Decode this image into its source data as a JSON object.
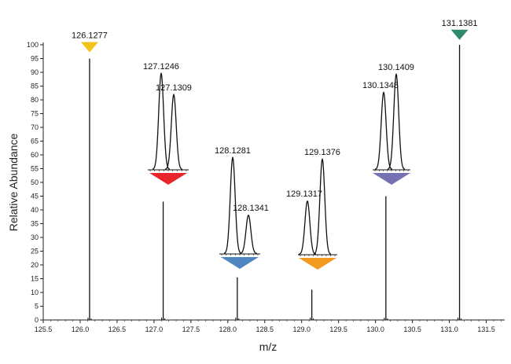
{
  "chart_data": {
    "type": "line",
    "title": "",
    "xlabel": "m/z",
    "ylabel": "Relative Abundance",
    "xlim": [
      125.5,
      131.75
    ],
    "ylim": [
      0,
      100
    ],
    "x_ticks": [
      125.5,
      126.0,
      126.5,
      127.0,
      127.5,
      128.0,
      128.5,
      129.0,
      129.5,
      130.0,
      130.5,
      131.0,
      131.5
    ],
    "x_tick_labels": [
      "125.5",
      "126.0",
      "126.5",
      "127.0",
      "127.5",
      "128.0",
      "128.5",
      "129.0",
      "129.5",
      "130.0",
      "130.5",
      "131.0",
      "131.5"
    ],
    "y_ticks": [
      0,
      5,
      10,
      15,
      20,
      25,
      30,
      35,
      40,
      45,
      50,
      55,
      60,
      65,
      70,
      75,
      80,
      85,
      90,
      95,
      100
    ],
    "y_tick_labels": [
      "0",
      "5",
      "10",
      "15",
      "20",
      "25",
      "30",
      "35",
      "40",
      "45",
      "50",
      "55",
      "60",
      "65",
      "70",
      "75",
      "80",
      "85",
      "90",
      "95",
      "100"
    ],
    "main_peaks": [
      {
        "mz": 126.1277,
        "abundance": 95
      },
      {
        "mz": 127.1246,
        "abundance": 43
      },
      {
        "mz": 128.1281,
        "abundance": 15.5
      },
      {
        "mz": 129.1376,
        "abundance": 11
      },
      {
        "mz": 130.1409,
        "abundance": 45
      },
      {
        "mz": 131.1381,
        "abundance": 100
      }
    ],
    "reporter_markers": [
      {
        "label": "126.1277",
        "mz": 126.1277,
        "color": "#f2c318",
        "direction": "down",
        "at_abundance": 101
      },
      {
        "label": "131.1381",
        "mz": 131.1381,
        "color": "#2e8b6e",
        "direction": "down",
        "at_abundance": 105.5
      }
    ],
    "insets": [
      {
        "center_mz": 127.1246,
        "color": "#e8242c",
        "peaks": [
          {
            "label": "127.1246",
            "rel_height": 1.0
          },
          {
            "label": "127.1309",
            "rel_height": 0.78
          }
        ]
      },
      {
        "center_mz": 128.1281,
        "color": "#4f86c0",
        "peaks": [
          {
            "label": "128.1281",
            "rel_height": 1.0
          },
          {
            "label": "128.1341",
            "rel_height": 0.4
          }
        ]
      },
      {
        "center_mz": 129.1376,
        "color": "#f39a21",
        "peaks": [
          {
            "label": "129.1317",
            "rel_height": 0.56
          },
          {
            "label": "129.1376",
            "rel_height": 1.0
          }
        ]
      },
      {
        "center_mz": 130.1409,
        "color": "#7571b2",
        "peaks": [
          {
            "label": "130.1348",
            "rel_height": 0.81
          },
          {
            "label": "130.1409",
            "rel_height": 1.0
          }
        ]
      }
    ],
    "grid": false,
    "legend": "none"
  }
}
